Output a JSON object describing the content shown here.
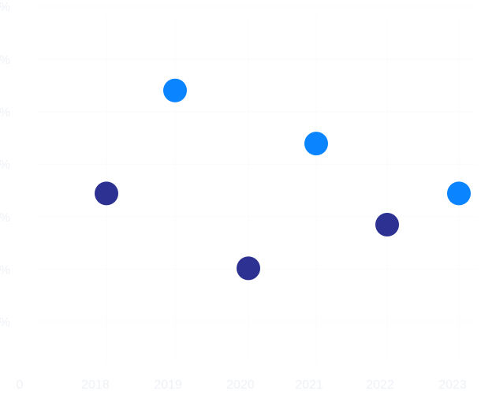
{
  "chart_data": {
    "type": "scatter",
    "title": "",
    "xlabel": "",
    "ylabel": "",
    "x_origin_label": "0",
    "x_ticks": [
      "2018",
      "2019",
      "2020",
      "2021",
      "2022",
      "2023"
    ],
    "y_tick_labels": [
      "%",
      "%",
      "%",
      "%",
      "%",
      "%",
      "%"
    ],
    "grid": true,
    "legend": "none",
    "series": [
      {
        "color": "#2d3192",
        "points": [
          {
            "x": "2018",
            "y": 0.58
          },
          {
            "x": "2020",
            "y": 0.34
          },
          {
            "x": "2022",
            "y": 0.48
          }
        ]
      },
      {
        "color": "#0a84ff",
        "points": [
          {
            "x": "2019",
            "y": 0.91
          },
          {
            "x": "2021",
            "y": 0.74
          },
          {
            "x": "2023",
            "y": 0.58
          }
        ]
      }
    ],
    "ylim": [
      0,
      1.2
    ]
  }
}
